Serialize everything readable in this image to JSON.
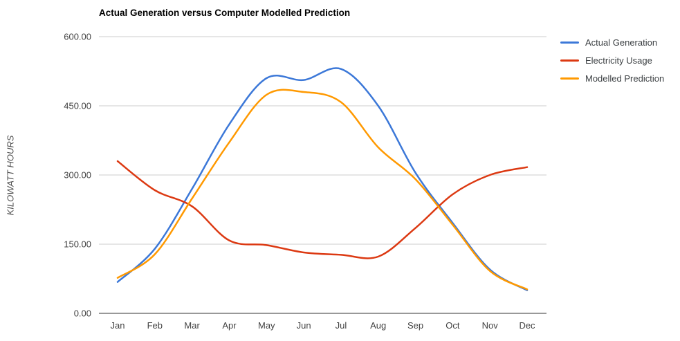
{
  "title": "Actual Generation versus Computer Modelled Prediction",
  "y_axis": {
    "title": "KILOWATT HOURS",
    "ticks": [
      "600.00",
      "450.00",
      "300.00",
      "150.00",
      "0.00"
    ]
  },
  "colors": {
    "grid": "#cccccc",
    "baseline": "#333333",
    "title_text": "#000000",
    "tick_text": "#424242",
    "legend_text": "#3c4043"
  },
  "chart_data": {
    "type": "line",
    "title": "Actual Generation versus Computer Modelled Prediction",
    "xlabel": "",
    "ylabel": "KILOWATT HOURS",
    "categories": [
      "Jan",
      "Feb",
      "Mar",
      "Apr",
      "May",
      "Jun",
      "Jul",
      "Aug",
      "Sep",
      "Oct",
      "Nov",
      "Dec"
    ],
    "series": [
      {
        "name": "Actual Generation",
        "color": "#3c78d8",
        "values": [
          68,
          140,
          270,
          410,
          510,
          506,
          530,
          450,
          305,
          196,
          95,
          50
        ]
      },
      {
        "name": "Electricity Usage",
        "color": "#dc3912",
        "values": [
          330,
          267,
          232,
          158,
          148,
          132,
          127,
          123,
          185,
          258,
          300,
          317
        ]
      },
      {
        "name": "Modelled Prediction",
        "color": "#ff9900",
        "values": [
          77,
          128,
          249,
          371,
          474,
          480,
          458,
          360,
          291,
          192,
          92,
          52
        ]
      }
    ],
    "ylim": [
      0,
      600
    ],
    "y_tick_step": 150,
    "grid": true,
    "line_smooth": true,
    "legend_position": "right"
  }
}
